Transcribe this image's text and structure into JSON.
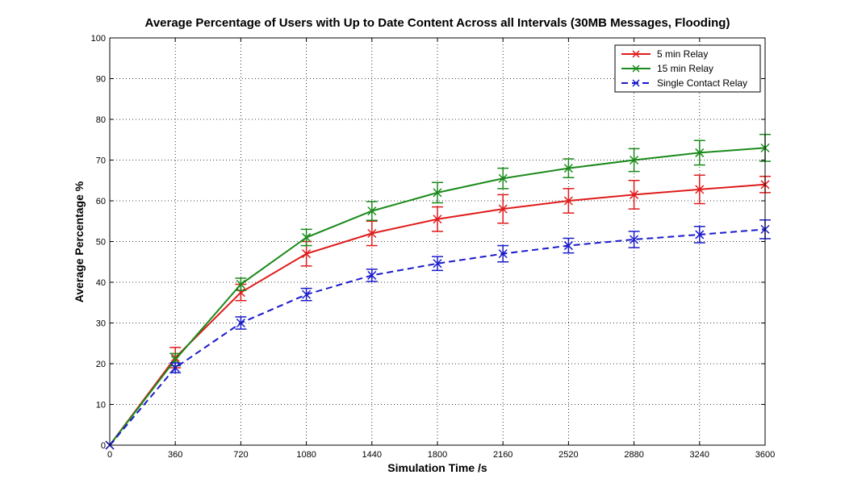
{
  "chart_data": {
    "type": "line",
    "title": "Average Percentage of Users with Up to Date Content Across all Intervals (30MB Messages, Flooding)",
    "xlabel": "Simulation Time /s",
    "ylabel": "Average Percentage %",
    "x": [
      0,
      360,
      720,
      1080,
      1440,
      1800,
      2160,
      2520,
      2880,
      3240,
      3600
    ],
    "xlim": [
      0,
      3600
    ],
    "ylim": [
      0,
      100
    ],
    "xticks": [
      0,
      360,
      720,
      1080,
      1440,
      1800,
      2160,
      2520,
      2880,
      3240,
      3600
    ],
    "yticks": [
      0,
      10,
      20,
      30,
      40,
      50,
      60,
      70,
      80,
      90,
      100
    ],
    "grid": true,
    "legend_position": "top-right",
    "series": [
      {
        "name": "5 min Relay",
        "color": "#e01b1b",
        "dash": "solid",
        "values": [
          0,
          21.5,
          37.5,
          47,
          52,
          55.5,
          58,
          60,
          61.5,
          62.8,
          64
        ],
        "errors": [
          0,
          2.5,
          2,
          3,
          3,
          3,
          3.5,
          3,
          3.5,
          3.5,
          2
        ]
      },
      {
        "name": "15 min Relay",
        "color": "#1a8a1a",
        "dash": "solid",
        "values": [
          0,
          21,
          39.5,
          51,
          57.5,
          62,
          65.5,
          68,
          70,
          71.8,
          73
        ],
        "errors": [
          0,
          1.5,
          1.5,
          2,
          2.3,
          2.5,
          2.5,
          2.3,
          2.8,
          3,
          3.3
        ]
      },
      {
        "name": "Single Contact Relay",
        "color": "#1a1acc",
        "dash": "dashed",
        "values": [
          0,
          19,
          30,
          37,
          41.7,
          44.6,
          47,
          49,
          50.5,
          51.7,
          53
        ],
        "errors": [
          0,
          1.2,
          1.5,
          1.5,
          1.5,
          1.7,
          2,
          1.8,
          2,
          2,
          2.3
        ]
      }
    ]
  }
}
